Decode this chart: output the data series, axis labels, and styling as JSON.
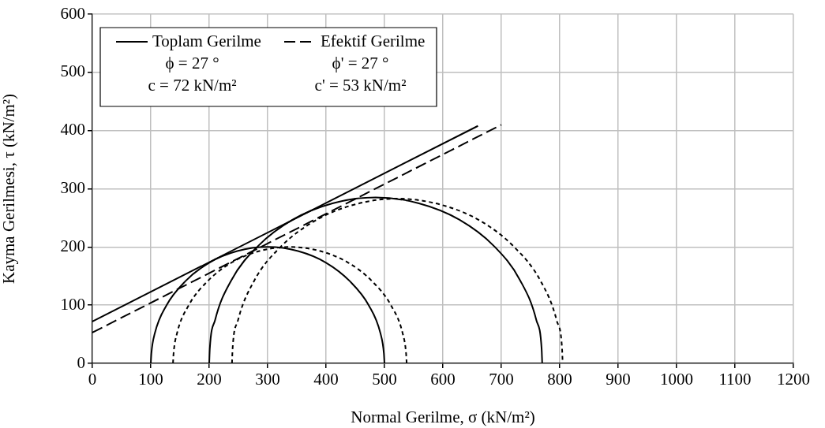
{
  "chart_data": {
    "type": "line",
    "xlabel": "Normal Gerilme, σ (kN/m²)",
    "ylabel": "Kayma Gerilmesi, τ (kN/m²)",
    "xlim": [
      0,
      1200
    ],
    "xticks": [
      0,
      100,
      200,
      300,
      400,
      500,
      600,
      700,
      800,
      900,
      1000,
      1100,
      1200
    ],
    "ylim": [
      0,
      600
    ],
    "yticks": [
      0,
      100,
      200,
      300,
      400,
      500,
      600
    ],
    "grid": true,
    "legend": "top left",
    "marker": "none",
    "annotations": [
      "ϕ = 27 °",
      "c = 72 kN/m²",
      "ϕ' = 27 °",
      "c' = 53 kN/m²"
    ],
    "series": [
      {
        "name": "Toplam Gerilme",
        "color": "#000000",
        "line_style": "solid",
        "x": [
          0,
          660
        ],
        "values": [
          72,
          408
        ]
      },
      {
        "name": "Efektif Gerilme",
        "color": "#000000",
        "line_style": "dashed",
        "x": [
          0,
          700
        ],
        "values": [
          53,
          410
        ]
      },
      {
        "color": "#000000",
        "line_style": "solid",
        "x": [
          100,
          101,
          107,
          127,
          159,
          200,
          248,
          300,
          352,
          400,
          441,
          473,
          493,
          499,
          500
        ],
        "values": [
          0,
          17,
          52,
          100,
          141,
          173,
          193,
          200,
          193,
          173,
          141,
          100,
          52,
          17,
          0
        ]
      },
      {
        "color": "#000000",
        "line_style": "solid",
        "x": [
          200,
          201,
          210,
          238,
          284,
          343,
          411,
          485,
          559,
          628,
          687,
          732,
          760,
          769,
          770
        ],
        "values": [
          0,
          25,
          74,
          143,
          202,
          247,
          275,
          285,
          275,
          247,
          202,
          143,
          74,
          25,
          0
        ]
      },
      {
        "color": "#000000",
        "line_style": "dotted",
        "x": [
          138,
          139,
          145,
          165,
          197,
          238,
          286,
          338,
          390,
          438,
          479,
          511,
          531,
          537,
          538
        ],
        "values": [
          0,
          17,
          52,
          100,
          141,
          173,
          193,
          200,
          193,
          173,
          141,
          100,
          52,
          17,
          0
        ]
      },
      {
        "color": "#000000",
        "line_style": "dotted",
        "x": [
          239,
          240,
          249,
          277,
          322,
          381,
          449,
          522,
          595,
          664,
          722,
          767,
          795,
          804,
          805
        ],
        "values": [
          0,
          25,
          73,
          142,
          200,
          245,
          273,
          283,
          273,
          245,
          200,
          142,
          73,
          25,
          0
        ]
      }
    ]
  }
}
